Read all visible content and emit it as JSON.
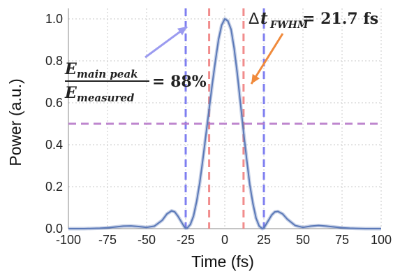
{
  "chart_data": {
    "type": "line",
    "xlabel": "Time (fs)",
    "ylabel": "Power (a.u.)",
    "xlim": [
      -100,
      100
    ],
    "ylim": [
      0,
      1.05
    ],
    "x_ticks": [
      -100,
      -75,
      -50,
      -25,
      0,
      25,
      50,
      75,
      100
    ],
    "y_ticks": [
      0.0,
      0.2,
      0.4,
      0.6,
      0.8,
      1.0
    ],
    "x_tick_labels": [
      "-100",
      "-75",
      "-50",
      "-25",
      "0",
      "25",
      "50",
      "75",
      "100"
    ],
    "y_tick_labels": [
      "0.0",
      "0.2",
      "0.4",
      "0.6",
      "0.8",
      "1.0"
    ],
    "grid": true,
    "series": [
      {
        "color": "#5b79b8",
        "x": [
          -100,
          -90,
          -80,
          -75,
          -70,
          -65,
          -60,
          -55,
          -50,
          -45,
          -40,
          -37,
          -34,
          -32,
          -30,
          -28,
          -26,
          -25,
          -24,
          -22,
          -20,
          -18,
          -16,
          -14,
          -12,
          -10,
          -8,
          -6,
          -4,
          -2,
          0,
          2,
          4,
          6,
          8,
          10,
          12,
          14,
          16,
          18,
          20,
          22,
          24,
          25,
          26,
          28,
          30,
          32,
          34,
          37,
          40,
          45,
          50,
          55,
          60,
          65,
          70,
          75,
          80,
          90,
          100
        ],
        "y": [
          0.0,
          0.0,
          0.002,
          0.004,
          0.008,
          0.012,
          0.013,
          0.01,
          0.006,
          0.012,
          0.04,
          0.07,
          0.085,
          0.08,
          0.06,
          0.035,
          0.01,
          0.002,
          0.003,
          0.02,
          0.06,
          0.13,
          0.22,
          0.33,
          0.45,
          0.57,
          0.69,
          0.8,
          0.9,
          0.97,
          1.0,
          0.99,
          0.95,
          0.86,
          0.74,
          0.6,
          0.46,
          0.33,
          0.21,
          0.12,
          0.05,
          0.012,
          0.0,
          0.003,
          0.015,
          0.04,
          0.065,
          0.08,
          0.082,
          0.07,
          0.045,
          0.015,
          0.006,
          0.012,
          0.015,
          0.012,
          0.008,
          0.004,
          0.002,
          0.0,
          0.0
        ]
      }
    ],
    "lines": {
      "fwhm_x": [
        -10,
        12
      ],
      "fwhm_color": "#f08080",
      "window_x": [
        -25,
        25
      ],
      "window_color": "#6b6bf0",
      "half_max_y": 0.5,
      "half_max_color": "#b77ac9"
    },
    "annotations": {
      "energy_num_base": "E",
      "energy_num_sub": "main peak",
      "energy_den_base": "E",
      "energy_den_sub": "measured",
      "energy_value": "= 88%",
      "fwhm_prefix": "Δ",
      "fwhm_base": "t",
      "fwhm_sub": "FWHM",
      "fwhm_value": "= 21.7 fs",
      "energy_arrow_color": "#9b9bf0",
      "fwhm_arrow_color": "#f08a3c"
    }
  }
}
